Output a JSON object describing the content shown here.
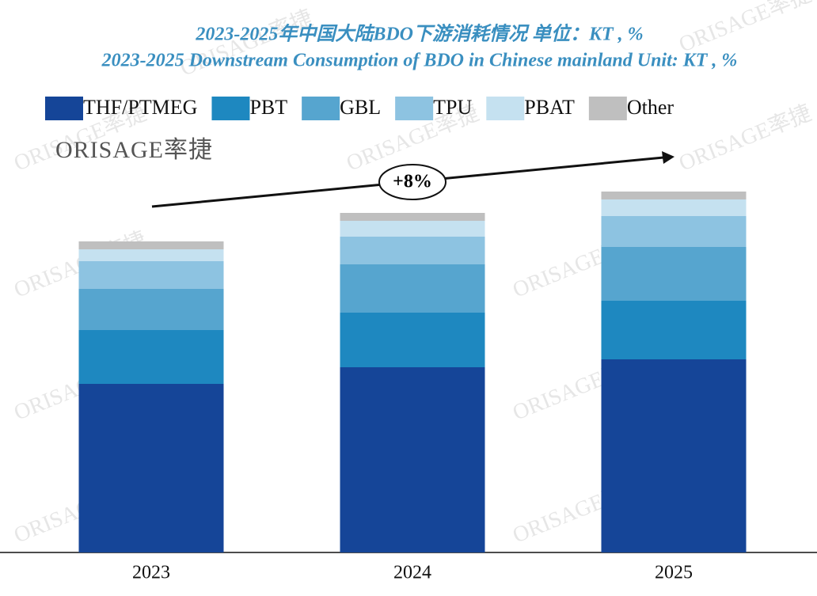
{
  "chart_data": {
    "type": "stacked_bar",
    "title": "2023-2025年中国大陆BDO下游消耗情况  单位：KT , %",
    "subtitle": "2023-2025 Downstream Consumption of BDO in Chinese mainland Unit: KT , %",
    "logo": "ORISAGE率捷",
    "watermark": "ORISAGE率捷",
    "annotation": "+8%",
    "categories": [
      "2023",
      "2024",
      "2025"
    ],
    "series": [
      {
        "name": "THF/PTMEG",
        "color": "#154598",
        "values": [
          213,
          234,
          244
        ]
      },
      {
        "name": "PBT",
        "color": "#1e88c0",
        "values": [
          68,
          69,
          74
        ]
      },
      {
        "name": "GBL",
        "color": "#56a5cf",
        "values": [
          52,
          61,
          68
        ]
      },
      {
        "name": "TPU",
        "color": "#8dc3e1",
        "values": [
          35,
          35,
          39
        ]
      },
      {
        "name": "PBAT",
        "color": "#c5e1f0",
        "values": [
          15,
          20,
          21
        ]
      },
      {
        "name": "Other",
        "color": "#bfbfbf",
        "values": [
          10,
          10,
          10
        ]
      }
    ],
    "ylim": [
      0,
      500
    ]
  }
}
